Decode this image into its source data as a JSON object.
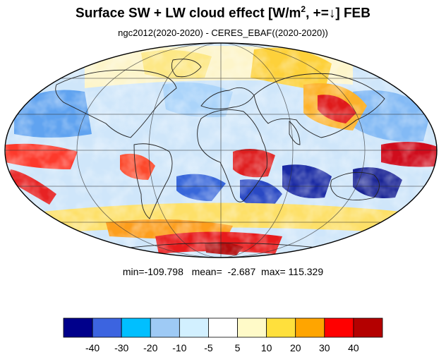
{
  "title": {
    "main": "Surface SW + LW cloud effect [W/m",
    "sup": "2",
    "tail": ", +=↓]  FEB"
  },
  "subtitle": "ngc2012(2020-2020) - CERES_EBAF((2020-2020))",
  "stats": {
    "min_label": "min=",
    "min": "-109.798",
    "mean_label": "mean=",
    "mean": "-2.687",
    "max_label": "max=",
    "max": "115.329"
  },
  "map": {
    "projection": "Mollweide",
    "graticule": "on",
    "coastlines": "on"
  },
  "colorbar": {
    "levels": [
      "-40",
      "-30",
      "-20",
      "-10",
      "-5",
      "5",
      "10",
      "20",
      "30",
      "40"
    ],
    "colors": [
      "#00008b",
      "#3c64e0",
      "#00bfff",
      "#9ecaf5",
      "#d2f0ff",
      "#ffffff",
      "#fffac8",
      "#ffe03c",
      "#ffa500",
      "#ff0000",
      "#b40000"
    ]
  }
}
